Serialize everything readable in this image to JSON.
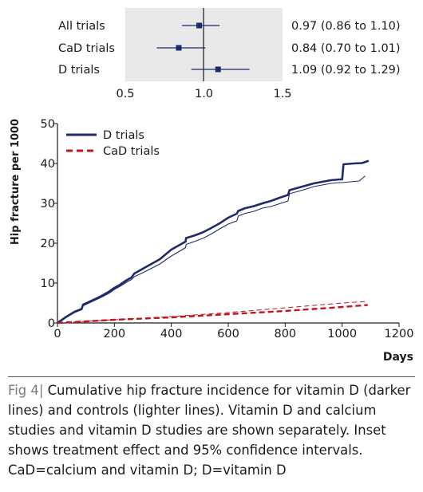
{
  "chart_data": [
    {
      "type": "forest",
      "xlim": [
        0.5,
        1.5
      ],
      "xticks": [
        "0.5",
        "1.0",
        "1.5"
      ],
      "reference_line": 1.0,
      "rows": [
        {
          "label": "All trials",
          "estimate": 0.97,
          "lower": 0.86,
          "upper": 1.1,
          "text": "0.97 (0.86 to 1.10)"
        },
        {
          "label": "CaD trials",
          "estimate": 0.84,
          "lower": 0.7,
          "upper": 1.01,
          "text": "0.84 (0.70 to 1.01)"
        },
        {
          "label": "D trials",
          "estimate": 1.09,
          "lower": 0.92,
          "upper": 1.29,
          "text": "1.09 (0.92 to 1.29)"
        }
      ],
      "colors": {
        "panel": "#e9e9e9",
        "marker": "#1f2a6b"
      }
    },
    {
      "type": "line",
      "xlabel": "Days",
      "ylabel": "Hip fracture per 1000",
      "xlim": [
        0,
        1200
      ],
      "ylim": [
        0,
        50
      ],
      "xticks": [
        "0",
        "200",
        "400",
        "600",
        "800",
        "1000",
        "1200"
      ],
      "yticks": [
        "0",
        "10",
        "20",
        "30",
        "40",
        "50"
      ],
      "legend_position": "top-left",
      "legend": [
        {
          "label": "D trials",
          "color": "#1f2a6b",
          "style": "solid"
        },
        {
          "label": "CaD trials",
          "color": "#c0141e",
          "style": "dashed"
        }
      ],
      "series": [
        {
          "name": "D trials",
          "group": "D trials",
          "role": "vitamin D",
          "color": "#1f2a6b",
          "style": "solid",
          "width": 2.6,
          "x": [
            0,
            30,
            60,
            85,
            90,
            120,
            150,
            180,
            200,
            220,
            240,
            260,
            270,
            300,
            330,
            360,
            380,
            400,
            420,
            450,
            452,
            480,
            510,
            540,
            570,
            600,
            630,
            635,
            660,
            690,
            720,
            750,
            780,
            810,
            815,
            840,
            870,
            900,
            930,
            960,
            990,
            1000,
            1005,
            1040,
            1070,
            1090
          ],
          "y": [
            0,
            1.5,
            2.8,
            3.5,
            4.6,
            5.6,
            6.6,
            7.8,
            8.8,
            9.6,
            10.6,
            11.4,
            12.4,
            13.6,
            14.8,
            16.0,
            17.2,
            18.4,
            19.2,
            20.4,
            21.3,
            21.9,
            22.7,
            23.8,
            25.0,
            26.4,
            27.4,
            28.1,
            28.8,
            29.3,
            30.0,
            30.6,
            31.4,
            32.1,
            33.3,
            33.8,
            34.4,
            35.0,
            35.4,
            35.8,
            36.0,
            36.0,
            39.8,
            40.0,
            40.1,
            40.6
          ]
        },
        {
          "name": "D trials",
          "group": "D trials",
          "role": "controls",
          "color": "#1f2a6b",
          "style": "solid",
          "width": 1.1,
          "x": [
            0,
            30,
            60,
            85,
            90,
            120,
            150,
            180,
            200,
            220,
            240,
            260,
            270,
            300,
            330,
            360,
            380,
            400,
            420,
            450,
            452,
            480,
            510,
            540,
            570,
            600,
            630,
            635,
            660,
            690,
            720,
            750,
            780,
            810,
            815,
            840,
            870,
            900,
            930,
            960,
            990,
            1000,
            1030,
            1060,
            1080
          ],
          "y": [
            0,
            1.4,
            2.6,
            3.3,
            4.3,
            5.3,
            6.3,
            7.4,
            8.4,
            9.2,
            10.1,
            10.9,
            11.6,
            12.6,
            13.7,
            14.8,
            15.8,
            16.8,
            17.6,
            18.9,
            19.7,
            20.4,
            21.2,
            22.3,
            23.6,
            24.8,
            25.6,
            26.8,
            27.5,
            28.0,
            28.8,
            29.2,
            29.9,
            30.6,
            32.4,
            32.9,
            33.5,
            34.2,
            34.6,
            35.0,
            35.2,
            35.2,
            35.4,
            35.6,
            36.8
          ]
        },
        {
          "name": "CaD trials",
          "group": "CaD trials",
          "role": "vitamin D",
          "color": "#c0141e",
          "style": "dashed",
          "width": 2.4,
          "x": [
            0,
            100,
            200,
            300,
            400,
            500,
            600,
            700,
            800,
            900,
            1000,
            1090
          ],
          "y": [
            0,
            0.4,
            0.8,
            1.1,
            1.4,
            1.8,
            2.2,
            2.6,
            3.0,
            3.5,
            4.0,
            4.5
          ]
        },
        {
          "name": "CaD trials",
          "group": "CaD trials",
          "role": "controls",
          "color": "#c0141e",
          "style": "dashed",
          "width": 1.0,
          "x": [
            0,
            100,
            200,
            300,
            400,
            500,
            600,
            700,
            800,
            900,
            1000,
            1090
          ],
          "y": [
            0,
            0.4,
            0.8,
            1.2,
            1.6,
            2.1,
            2.6,
            3.2,
            3.8,
            4.4,
            5.0,
            5.4
          ]
        }
      ]
    }
  ],
  "caption": {
    "figure_label": "Fig 4",
    "separator": "|",
    "text": "Cumulative hip fracture incidence for vitamin D (darker lines) and controls (lighter lines). Vitamin D and calcium studies and vitamin D studies are shown separately. Inset shows treatment effect and 95% confidence intervals. CaD=calcium and vitamin D; D=vitamin D"
  }
}
